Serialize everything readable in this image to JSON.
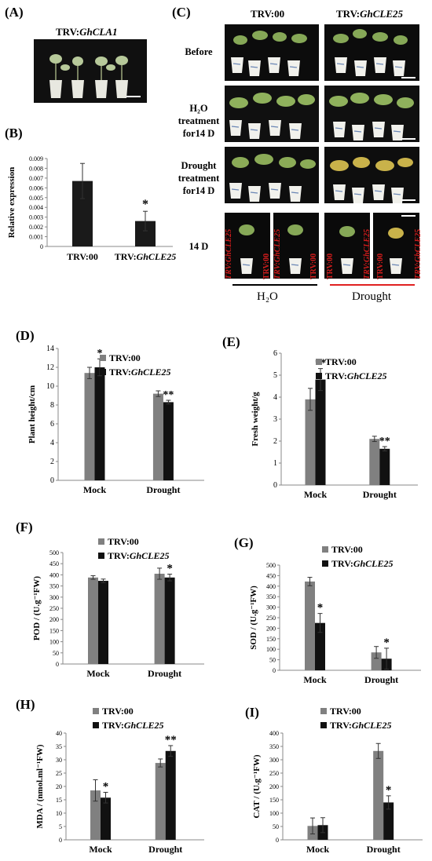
{
  "panels": {
    "A": {
      "label": "(A)",
      "title_prefix": "TRV:",
      "title_gene": "GhCLA1"
    },
    "B": {
      "label": "(B)",
      "ylabel": "Relative expression",
      "significance": "*"
    },
    "C": {
      "label": "(C)",
      "col1": "TRV:00",
      "col2_prefix": "TRV:",
      "col2_gene": "GhCLE25",
      "rows": [
        {
          "line1": "Before",
          "line2": "",
          "line3": ""
        },
        {
          "line1": "H₂O",
          "line2": "treatment",
          "line3": "for14 D"
        },
        {
          "line1": "Drought",
          "line2": "treatment",
          "line3": "for14 D"
        },
        {
          "line1": "14 D",
          "line2": "",
          "line3": ""
        }
      ],
      "bottom_left": "H₂O",
      "bottom_right": "Drought",
      "pot_labels": [
        "TRV:GhCLE25",
        "TRV:00",
        "TRV:GhCLE25",
        "TRV:00"
      ]
    },
    "D": {
      "label": "(D)",
      "ylabel": "Plant height/cm"
    },
    "E": {
      "label": "(E)",
      "ylabel": "Fresh weight/g"
    },
    "F": {
      "label": "(F)",
      "ylabel": "POD / (U.g⁻¹FW)"
    },
    "G": {
      "label": "(G)",
      "ylabel": "SOD / (U.g⁻¹FW)"
    },
    "H": {
      "label": "(H)",
      "ylabel": "MDA / (nmol.ml⁻¹FW)"
    },
    "I": {
      "label": "(I)",
      "ylabel": "CAT / (U.g⁻¹FW)"
    }
  },
  "legend": {
    "series1": "TRV:00",
    "series2_prefix": "TRV:",
    "series2_gene": "GhCLE25"
  },
  "colors": {
    "series1": "#808080",
    "series2": "#111111",
    "drought_line": "#e02020",
    "h2o_line": "#000000",
    "pot_label_red": "#d21c1c"
  },
  "chart_data": [
    {
      "panel": "B",
      "type": "bar",
      "categories": [
        "TRV:00",
        "TRV:GhCLE25"
      ],
      "values": [
        0.0067,
        0.0026
      ],
      "errors": [
        0.0018,
        0.001
      ],
      "significance": [
        "",
        "*"
      ],
      "ylabel": "Relative expression",
      "ylim": [
        0,
        0.009
      ],
      "yticks": [
        "0",
        "0.001",
        "0.002",
        "0.003",
        "0.004",
        "0.005",
        "0.006",
        "0.007",
        "0.008",
        "0.009"
      ]
    },
    {
      "panel": "D",
      "type": "bar",
      "categories": [
        "Mock",
        "Drought"
      ],
      "series": [
        {
          "name": "TRV:00",
          "values": [
            11.4,
            9.2
          ],
          "errors": [
            0.6,
            0.3
          ]
        },
        {
          "name": "TRV:GhCLE25",
          "values": [
            12.0,
            8.3
          ],
          "errors": [
            0.9,
            0.2
          ]
        }
      ],
      "significance": [
        "*",
        "**"
      ],
      "ylabel": "Plant height/cm",
      "ylim": [
        0,
        14
      ],
      "yticks": [
        "0",
        "2",
        "4",
        "6",
        "8",
        "10",
        "12",
        "14"
      ]
    },
    {
      "panel": "E",
      "type": "bar",
      "categories": [
        "Mock",
        "Drought"
      ],
      "series": [
        {
          "name": "TRV:00",
          "values": [
            3.9,
            2.1
          ],
          "errors": [
            0.5,
            0.12
          ]
        },
        {
          "name": "TRV:GhCLE25",
          "values": [
            4.8,
            1.65
          ],
          "errors": [
            0.5,
            0.1
          ]
        }
      ],
      "significance": [
        "**",
        "**"
      ],
      "ylabel": "Fresh weight/g",
      "ylim": [
        0,
        6
      ],
      "yticks": [
        "0",
        "1",
        "2",
        "3",
        "4",
        "5",
        "6"
      ]
    },
    {
      "panel": "F",
      "type": "bar",
      "categories": [
        "Mock",
        "Drought"
      ],
      "series": [
        {
          "name": "TRV:00",
          "values": [
            388,
            405
          ],
          "errors": [
            8,
            25
          ]
        },
        {
          "name": "TRV:GhCLE25",
          "values": [
            373,
            388
          ],
          "errors": [
            8,
            15
          ]
        }
      ],
      "significance": [
        "",
        "*"
      ],
      "ylabel": "POD / (U.g⁻¹FW)",
      "ylim": [
        0,
        500
      ],
      "yticks": [
        "0",
        "50",
        "100",
        "150",
        "200",
        "250",
        "300",
        "350",
        "400",
        "450",
        "500"
      ]
    },
    {
      "panel": "G",
      "type": "bar",
      "categories": [
        "Mock",
        "Drought"
      ],
      "series": [
        {
          "name": "TRV:00",
          "values": [
            422,
            85
          ],
          "errors": [
            20,
            28
          ]
        },
        {
          "name": "TRV:GhCLE25",
          "values": [
            225,
            55
          ],
          "errors": [
            45,
            50
          ]
        }
      ],
      "significance": [
        "*",
        "*"
      ],
      "ylabel": "SOD / (U.g⁻¹FW)",
      "ylim": [
        0,
        500
      ],
      "yticks": [
        "0",
        "50",
        "100",
        "150",
        "200",
        "250",
        "300",
        "350",
        "400",
        "450",
        "500"
      ]
    },
    {
      "panel": "H",
      "type": "bar",
      "categories": [
        "Mock",
        "Drought"
      ],
      "series": [
        {
          "name": "TRV:00",
          "values": [
            18.5,
            28.8
          ],
          "errors": [
            4,
            1.5
          ]
        },
        {
          "name": "TRV:GhCLE25",
          "values": [
            15.8,
            33.3
          ],
          "errors": [
            2,
            2
          ]
        }
      ],
      "significance": [
        "*",
        "**"
      ],
      "ylabel": "MDA / (nmol.ml⁻¹FW)",
      "ylim": [
        0,
        40
      ],
      "yticks": [
        "0",
        "5",
        "10",
        "15",
        "20",
        "25",
        "30",
        "35",
        "40"
      ]
    },
    {
      "panel": "I",
      "type": "bar",
      "categories": [
        "Mock",
        "Drought"
      ],
      "series": [
        {
          "name": "TRV:00",
          "values": [
            52,
            333
          ],
          "errors": [
            30,
            28
          ]
        },
        {
          "name": "TRV:GhCLE25",
          "values": [
            55,
            140
          ],
          "errors": [
            28,
            25
          ]
        }
      ],
      "significance": [
        "",
        "*"
      ],
      "ylabel": "CAT / (U.g⁻¹FW)",
      "ylim": [
        0,
        400
      ],
      "yticks": [
        "0",
        "50",
        "100",
        "150",
        "200",
        "250",
        "300",
        "350",
        "400"
      ]
    }
  ]
}
